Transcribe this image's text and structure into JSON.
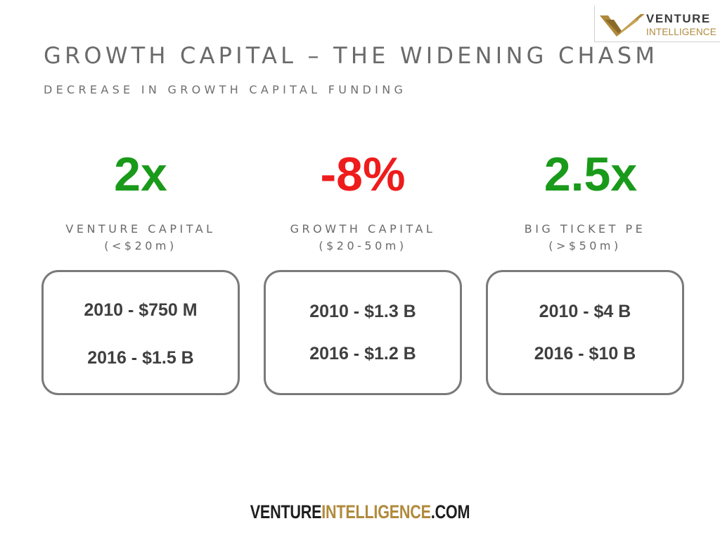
{
  "logo": {
    "word1": "VENTURE",
    "word2": "INTELLIGENCE",
    "icon": "chevron-v-logo-icon",
    "gold": "#b08a3c",
    "dark": "#3b3b3b"
  },
  "title": "GROWTH CAPITAL – THE WIDENING CHASM",
  "subtitle": "DECREASE IN GROWTH CAPITAL FUNDING",
  "colors": {
    "positive": "#1a9a1a",
    "negative": "#ee1c1c",
    "text": "#3f3f3f"
  },
  "columns": [
    {
      "metric": "2x",
      "metric_status": "positive",
      "category": "VENTURE CAPITAL",
      "range": "(<$20m)",
      "line1": "2010 - $750 M",
      "line2": "2016 - $1.5 B"
    },
    {
      "metric": "-8%",
      "metric_status": "negative",
      "category": "GROWTH CAPITAL",
      "range": "($20-50m)",
      "line1": "2010 - $1.3 B",
      "line2": "2016 - $1.2 B"
    },
    {
      "metric": "2.5x",
      "metric_status": "positive",
      "category": "BIG TICKET PE",
      "range": "(>$50m)",
      "line1": "2010 - $4 B",
      "line2": "2016 - $10 B"
    }
  ],
  "footer": {
    "part1": "VENTURE",
    "part2": "INTELLIGENCE",
    "part3": ".COM"
  }
}
